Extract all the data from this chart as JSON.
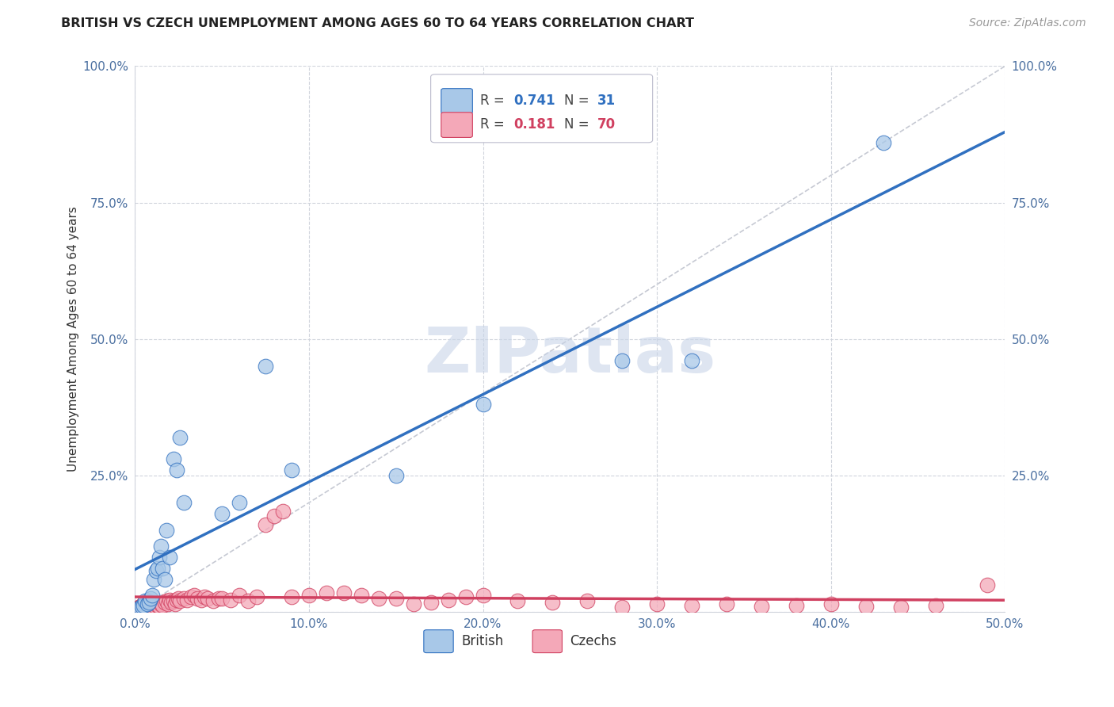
{
  "title": "BRITISH VS CZECH UNEMPLOYMENT AMONG AGES 60 TO 64 YEARS CORRELATION CHART",
  "source": "Source: ZipAtlas.com",
  "ylabel": "Unemployment Among Ages 60 to 64 years",
  "xlim": [
    0,
    0.5
  ],
  "ylim": [
    0,
    1.0
  ],
  "xticks": [
    0.0,
    0.1,
    0.2,
    0.3,
    0.4,
    0.5
  ],
  "yticks": [
    0.0,
    0.25,
    0.5,
    0.75,
    1.0
  ],
  "xticklabels": [
    "0.0%",
    "10.0%",
    "20.0%",
    "30.0%",
    "40.0%",
    "50.0%"
  ],
  "yticklabels": [
    "",
    "25.0%",
    "50.0%",
    "75.0%",
    "100.0%"
  ],
  "british_R": 0.741,
  "british_N": 31,
  "czech_R": 0.181,
  "czech_N": 70,
  "british_color": "#a8c8e8",
  "czech_color": "#f4a8b8",
  "british_line_color": "#3070c0",
  "czech_line_color": "#d04060",
  "ref_line_color": "#b8bcc8",
  "watermark_color": "#c8d4e8",
  "background_color": "#ffffff",
  "grid_color": "#d0d4dc",
  "british_x": [
    0.002,
    0.003,
    0.004,
    0.005,
    0.006,
    0.007,
    0.008,
    0.009,
    0.01,
    0.011,
    0.012,
    0.013,
    0.014,
    0.015,
    0.016,
    0.017,
    0.018,
    0.02,
    0.022,
    0.024,
    0.026,
    0.028,
    0.05,
    0.06,
    0.075,
    0.09,
    0.15,
    0.2,
    0.28,
    0.32,
    0.43
  ],
  "british_y": [
    0.005,
    0.008,
    0.01,
    0.012,
    0.02,
    0.015,
    0.018,
    0.025,
    0.03,
    0.06,
    0.075,
    0.08,
    0.1,
    0.12,
    0.08,
    0.06,
    0.15,
    0.1,
    0.28,
    0.26,
    0.32,
    0.2,
    0.18,
    0.2,
    0.45,
    0.26,
    0.25,
    0.38,
    0.46,
    0.46,
    0.86
  ],
  "czech_x": [
    0.001,
    0.002,
    0.003,
    0.004,
    0.005,
    0.006,
    0.007,
    0.008,
    0.009,
    0.01,
    0.011,
    0.012,
    0.013,
    0.014,
    0.015,
    0.016,
    0.017,
    0.018,
    0.019,
    0.02,
    0.021,
    0.022,
    0.023,
    0.024,
    0.025,
    0.026,
    0.028,
    0.03,
    0.032,
    0.034,
    0.036,
    0.038,
    0.04,
    0.042,
    0.045,
    0.048,
    0.05,
    0.055,
    0.06,
    0.065,
    0.07,
    0.075,
    0.08,
    0.085,
    0.09,
    0.1,
    0.11,
    0.12,
    0.13,
    0.14,
    0.15,
    0.16,
    0.17,
    0.18,
    0.19,
    0.2,
    0.22,
    0.24,
    0.26,
    0.28,
    0.3,
    0.32,
    0.34,
    0.36,
    0.38,
    0.4,
    0.42,
    0.44,
    0.46,
    0.49
  ],
  "czech_y": [
    0.005,
    0.008,
    0.01,
    0.012,
    0.015,
    0.018,
    0.02,
    0.008,
    0.012,
    0.01,
    0.015,
    0.008,
    0.012,
    0.01,
    0.015,
    0.012,
    0.018,
    0.02,
    0.015,
    0.022,
    0.018,
    0.02,
    0.015,
    0.022,
    0.025,
    0.02,
    0.025,
    0.022,
    0.028,
    0.03,
    0.025,
    0.022,
    0.028,
    0.025,
    0.02,
    0.025,
    0.025,
    0.022,
    0.03,
    0.02,
    0.028,
    0.16,
    0.175,
    0.185,
    0.028,
    0.03,
    0.035,
    0.035,
    0.03,
    0.025,
    0.025,
    0.015,
    0.018,
    0.022,
    0.028,
    0.03,
    0.02,
    0.018,
    0.02,
    0.008,
    0.015,
    0.012,
    0.015,
    0.01,
    0.012,
    0.015,
    0.01,
    0.008,
    0.012,
    0.05
  ]
}
